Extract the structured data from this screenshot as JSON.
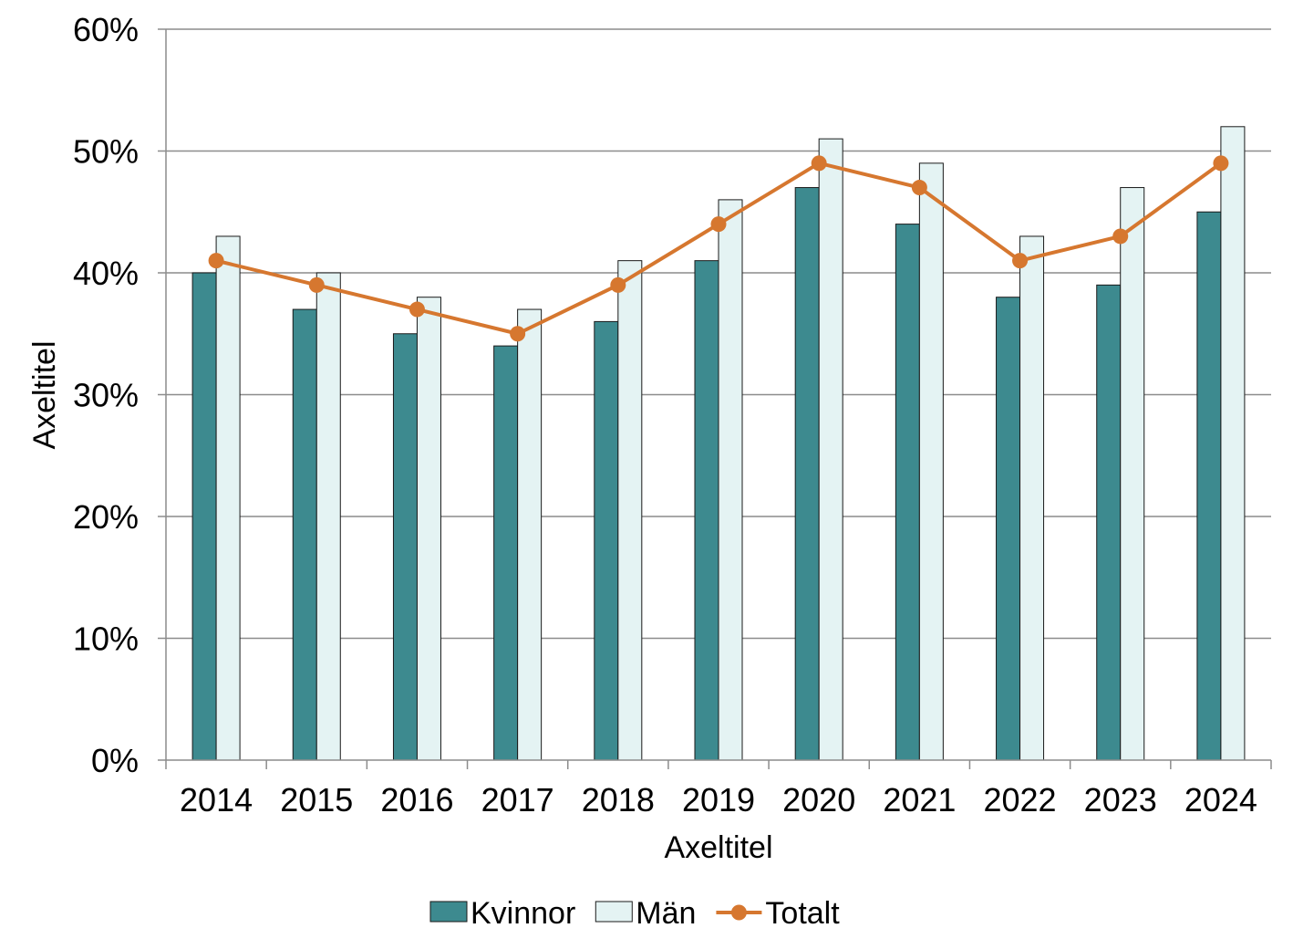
{
  "chart_data": {
    "type": "bar",
    "categories": [
      "2014",
      "2015",
      "2016",
      "2017",
      "2018",
      "2019",
      "2020",
      "2021",
      "2022",
      "2023",
      "2024"
    ],
    "series": [
      {
        "name": "Kvinnor",
        "kind": "bar",
        "color": "#3d8a8f",
        "values": [
          40,
          37,
          35,
          34,
          36,
          41,
          47,
          44,
          38,
          39,
          45
        ]
      },
      {
        "name": "Män",
        "kind": "bar",
        "color": "#e4f3f3",
        "values": [
          43,
          40,
          38,
          37,
          41,
          46,
          51,
          49,
          43,
          47,
          52
        ]
      },
      {
        "name": "Totalt",
        "kind": "line",
        "color": "#d6772f",
        "values": [
          41,
          39,
          37,
          35,
          39,
          44,
          49,
          47,
          41,
          43,
          49
        ]
      }
    ],
    "xlabel": "Axeltitel",
    "ylabel": "Axeltitel",
    "ylim": [
      0,
      60
    ],
    "yticks": [
      "0%",
      "10%",
      "20%",
      "30%",
      "40%",
      "50%",
      "60%"
    ],
    "grid": true,
    "legend": "bottom"
  }
}
